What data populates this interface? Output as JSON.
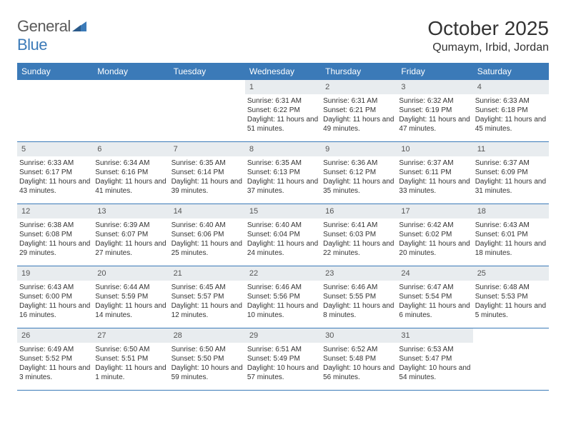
{
  "logo": {
    "word1": "General",
    "word2": "Blue"
  },
  "title": "October 2025",
  "location": "Qumaym, Irbid, Jordan",
  "colors": {
    "header_blue": "#3b7ab8",
    "daynum_bg": "#e8ecef",
    "text": "#333333",
    "logo_gray": "#5a5a5a"
  },
  "day_headers": [
    "Sunday",
    "Monday",
    "Tuesday",
    "Wednesday",
    "Thursday",
    "Friday",
    "Saturday"
  ],
  "weeks": [
    [
      {
        "n": "",
        "sr": "",
        "ss": "",
        "dl": ""
      },
      {
        "n": "",
        "sr": "",
        "ss": "",
        "dl": ""
      },
      {
        "n": "",
        "sr": "",
        "ss": "",
        "dl": ""
      },
      {
        "n": "1",
        "sr": "Sunrise: 6:31 AM",
        "ss": "Sunset: 6:22 PM",
        "dl": "Daylight: 11 hours and 51 minutes."
      },
      {
        "n": "2",
        "sr": "Sunrise: 6:31 AM",
        "ss": "Sunset: 6:21 PM",
        "dl": "Daylight: 11 hours and 49 minutes."
      },
      {
        "n": "3",
        "sr": "Sunrise: 6:32 AM",
        "ss": "Sunset: 6:19 PM",
        "dl": "Daylight: 11 hours and 47 minutes."
      },
      {
        "n": "4",
        "sr": "Sunrise: 6:33 AM",
        "ss": "Sunset: 6:18 PM",
        "dl": "Daylight: 11 hours and 45 minutes."
      }
    ],
    [
      {
        "n": "5",
        "sr": "Sunrise: 6:33 AM",
        "ss": "Sunset: 6:17 PM",
        "dl": "Daylight: 11 hours and 43 minutes."
      },
      {
        "n": "6",
        "sr": "Sunrise: 6:34 AM",
        "ss": "Sunset: 6:16 PM",
        "dl": "Daylight: 11 hours and 41 minutes."
      },
      {
        "n": "7",
        "sr": "Sunrise: 6:35 AM",
        "ss": "Sunset: 6:14 PM",
        "dl": "Daylight: 11 hours and 39 minutes."
      },
      {
        "n": "8",
        "sr": "Sunrise: 6:35 AM",
        "ss": "Sunset: 6:13 PM",
        "dl": "Daylight: 11 hours and 37 minutes."
      },
      {
        "n": "9",
        "sr": "Sunrise: 6:36 AM",
        "ss": "Sunset: 6:12 PM",
        "dl": "Daylight: 11 hours and 35 minutes."
      },
      {
        "n": "10",
        "sr": "Sunrise: 6:37 AM",
        "ss": "Sunset: 6:11 PM",
        "dl": "Daylight: 11 hours and 33 minutes."
      },
      {
        "n": "11",
        "sr": "Sunrise: 6:37 AM",
        "ss": "Sunset: 6:09 PM",
        "dl": "Daylight: 11 hours and 31 minutes."
      }
    ],
    [
      {
        "n": "12",
        "sr": "Sunrise: 6:38 AM",
        "ss": "Sunset: 6:08 PM",
        "dl": "Daylight: 11 hours and 29 minutes."
      },
      {
        "n": "13",
        "sr": "Sunrise: 6:39 AM",
        "ss": "Sunset: 6:07 PM",
        "dl": "Daylight: 11 hours and 27 minutes."
      },
      {
        "n": "14",
        "sr": "Sunrise: 6:40 AM",
        "ss": "Sunset: 6:06 PM",
        "dl": "Daylight: 11 hours and 25 minutes."
      },
      {
        "n": "15",
        "sr": "Sunrise: 6:40 AM",
        "ss": "Sunset: 6:04 PM",
        "dl": "Daylight: 11 hours and 24 minutes."
      },
      {
        "n": "16",
        "sr": "Sunrise: 6:41 AM",
        "ss": "Sunset: 6:03 PM",
        "dl": "Daylight: 11 hours and 22 minutes."
      },
      {
        "n": "17",
        "sr": "Sunrise: 6:42 AM",
        "ss": "Sunset: 6:02 PM",
        "dl": "Daylight: 11 hours and 20 minutes."
      },
      {
        "n": "18",
        "sr": "Sunrise: 6:43 AM",
        "ss": "Sunset: 6:01 PM",
        "dl": "Daylight: 11 hours and 18 minutes."
      }
    ],
    [
      {
        "n": "19",
        "sr": "Sunrise: 6:43 AM",
        "ss": "Sunset: 6:00 PM",
        "dl": "Daylight: 11 hours and 16 minutes."
      },
      {
        "n": "20",
        "sr": "Sunrise: 6:44 AM",
        "ss": "Sunset: 5:59 PM",
        "dl": "Daylight: 11 hours and 14 minutes."
      },
      {
        "n": "21",
        "sr": "Sunrise: 6:45 AM",
        "ss": "Sunset: 5:57 PM",
        "dl": "Daylight: 11 hours and 12 minutes."
      },
      {
        "n": "22",
        "sr": "Sunrise: 6:46 AM",
        "ss": "Sunset: 5:56 PM",
        "dl": "Daylight: 11 hours and 10 minutes."
      },
      {
        "n": "23",
        "sr": "Sunrise: 6:46 AM",
        "ss": "Sunset: 5:55 PM",
        "dl": "Daylight: 11 hours and 8 minutes."
      },
      {
        "n": "24",
        "sr": "Sunrise: 6:47 AM",
        "ss": "Sunset: 5:54 PM",
        "dl": "Daylight: 11 hours and 6 minutes."
      },
      {
        "n": "25",
        "sr": "Sunrise: 6:48 AM",
        "ss": "Sunset: 5:53 PM",
        "dl": "Daylight: 11 hours and 5 minutes."
      }
    ],
    [
      {
        "n": "26",
        "sr": "Sunrise: 6:49 AM",
        "ss": "Sunset: 5:52 PM",
        "dl": "Daylight: 11 hours and 3 minutes."
      },
      {
        "n": "27",
        "sr": "Sunrise: 6:50 AM",
        "ss": "Sunset: 5:51 PM",
        "dl": "Daylight: 11 hours and 1 minute."
      },
      {
        "n": "28",
        "sr": "Sunrise: 6:50 AM",
        "ss": "Sunset: 5:50 PM",
        "dl": "Daylight: 10 hours and 59 minutes."
      },
      {
        "n": "29",
        "sr": "Sunrise: 6:51 AM",
        "ss": "Sunset: 5:49 PM",
        "dl": "Daylight: 10 hours and 57 minutes."
      },
      {
        "n": "30",
        "sr": "Sunrise: 6:52 AM",
        "ss": "Sunset: 5:48 PM",
        "dl": "Daylight: 10 hours and 56 minutes."
      },
      {
        "n": "31",
        "sr": "Sunrise: 6:53 AM",
        "ss": "Sunset: 5:47 PM",
        "dl": "Daylight: 10 hours and 54 minutes."
      },
      {
        "n": "",
        "sr": "",
        "ss": "",
        "dl": ""
      }
    ]
  ]
}
